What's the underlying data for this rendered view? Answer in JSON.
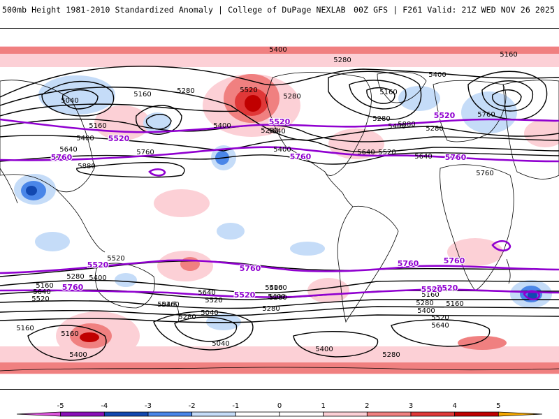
{
  "header": {
    "left": "500mb Height 1981-2010 Standardized Anomaly | College of DuPage NEXLAB",
    "right": "00Z GFS | F261 Valid: 21Z WED NOV 26 2025"
  },
  "colors": {
    "neg5": "#dd55dd",
    "neg4": "#8a10b8",
    "neg3": "#1248b0",
    "neg2": "#4a86e8",
    "neg1": "#c5dcf8",
    "zero": "#ffffff",
    "pos1": "#fcd0d6",
    "pos2": "#f08080",
    "pos3": "#e03838",
    "pos4": "#c00000",
    "pos5": "#f5a800",
    "contour_black": "#000000",
    "contour_purple": "#9000d0",
    "land": "#000000"
  },
  "colorbar": {
    "ticks": [
      "-5",
      "-4",
      "-3",
      "-2",
      "-1",
      "0",
      "1",
      "2",
      "3",
      "4",
      "5"
    ]
  },
  "contour_labels": {
    "black": [
      "5400",
      "5280",
      "5160",
      "5040",
      "5160",
      "5280",
      "5400",
      "5520",
      "5640",
      "5880",
      "5760",
      "5400",
      "5640",
      "5280",
      "5160",
      "5280",
      "5400",
      "5280",
      "5760",
      "5640",
      "5400",
      "5160",
      "5400",
      "5280",
      "5880",
      "5760",
      "5640",
      "5520",
      "5520",
      "5400",
      "5280",
      "5160",
      "5640",
      "5520",
      "5160",
      "5040",
      "5040",
      "5160",
      "5400",
      "5280",
      "5160",
      "5280",
      "5400",
      "5520",
      "5640",
      "5160",
      "5640",
      "5520",
      "5400",
      "5280",
      "5160",
      "5280",
      "5040",
      "5400",
      "5160",
      "5400",
      "5280"
    ],
    "purple": [
      "5520",
      "5760",
      "5520",
      "5760",
      "5520",
      "5760",
      "5520",
      "5760",
      "5760",
      "5760",
      "5520",
      "5520",
      "5760",
      "5520"
    ]
  }
}
